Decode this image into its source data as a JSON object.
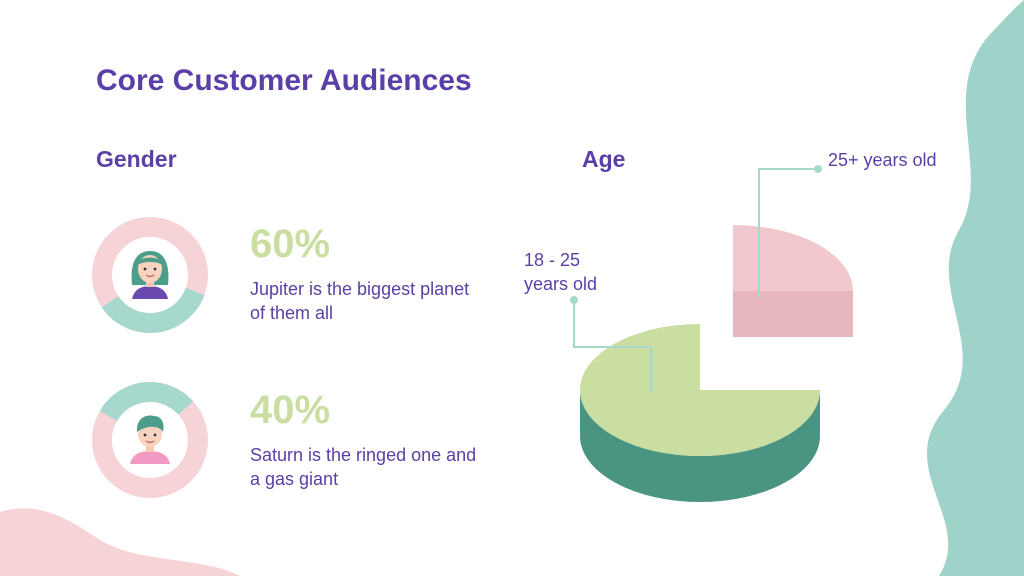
{
  "slide": {
    "title": "Core Customer Audiences"
  },
  "gender": {
    "heading": "Gender",
    "items": [
      {
        "percent_label": "60%",
        "value": 60,
        "description": "Jupiter is the biggest planet of them all",
        "avatar": "female-avatar-icon"
      },
      {
        "percent_label": "40%",
        "value": 40,
        "description": "Saturn is the ringed one and a gas giant",
        "avatar": "male-avatar-icon"
      }
    ]
  },
  "age": {
    "heading": "Age",
    "labels": [
      "18 - 25 years old",
      "25+ years old"
    ]
  },
  "chart_data": [
    {
      "type": "pie",
      "categories": [
        "18 - 25 years old",
        "25+ years old"
      ],
      "values": [
        75,
        25
      ],
      "colors": [
        "#c9dea0",
        "#f1c8cd"
      ]
    }
  ],
  "colors": {
    "title": "#5b3fa6",
    "accent_green": "#c9dea0",
    "teal": "#9fd3c9",
    "pink": "#f5d3d6",
    "dark_teal": "#4a9482"
  }
}
